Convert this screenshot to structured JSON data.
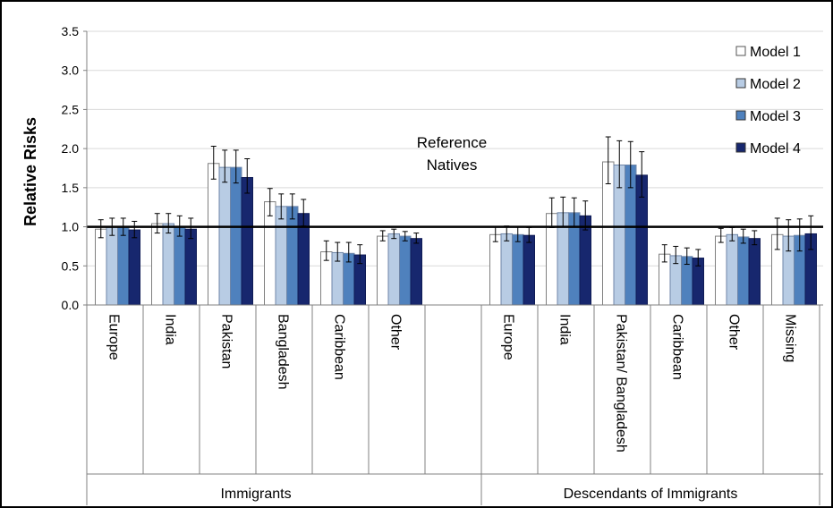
{
  "chart_data": {
    "type": "bar",
    "ylabel": "Relative Risks",
    "ylim": [
      0,
      3.5
    ],
    "yticks": [
      "0.0",
      "0.5",
      "1.0",
      "1.5",
      "2.0",
      "2.5",
      "3.0",
      "3.5"
    ],
    "grid": true,
    "legend_position": "top-right",
    "reference_line": {
      "value": 1.0,
      "label_line1": "Reference",
      "label_line2": "Natives"
    },
    "groups": [
      {
        "label": "Immigrants",
        "categories": [
          "Europe",
          "India",
          "Pakistan",
          "Bangladesh",
          "Caribbean",
          "Other"
        ]
      },
      {
        "label": "Descendants of Immigrants",
        "categories": [
          "Europe",
          "India",
          "Pakistan/ Bangladesh",
          "Caribbean",
          "Other",
          "Missing"
        ]
      }
    ],
    "series": [
      {
        "name": "Model 1",
        "color": "#ffffff",
        "values": [
          0.97,
          1.04,
          1.81,
          1.32,
          0.68,
          0.88,
          null,
          0.9,
          1.17,
          1.83,
          0.65,
          0.88,
          0.9
        ],
        "lower": [
          0.86,
          0.92,
          1.61,
          1.14,
          0.57,
          0.82,
          null,
          0.81,
          0.99,
          1.55,
          0.55,
          0.8,
          0.71
        ],
        "upper": [
          1.09,
          1.17,
          2.03,
          1.49,
          0.82,
          0.95,
          null,
          1.0,
          1.37,
          2.15,
          0.77,
          0.98,
          1.11
        ]
      },
      {
        "name": "Model 2",
        "color": "#b8cce4",
        "values": [
          1.0,
          1.04,
          1.76,
          1.26,
          0.67,
          0.91,
          null,
          0.91,
          1.18,
          1.79,
          0.63,
          0.9,
          0.88
        ],
        "lower": [
          0.89,
          0.92,
          1.57,
          1.1,
          0.56,
          0.85,
          null,
          0.82,
          1.0,
          1.5,
          0.53,
          0.82,
          0.69
        ],
        "upper": [
          1.11,
          1.17,
          1.98,
          1.42,
          0.8,
          0.97,
          null,
          1.01,
          1.38,
          2.1,
          0.75,
          0.99,
          1.09
        ]
      },
      {
        "name": "Model 3",
        "color": "#4f81bd",
        "values": [
          1.0,
          1.0,
          1.76,
          1.26,
          0.66,
          0.88,
          null,
          0.9,
          1.18,
          1.79,
          0.62,
          0.87,
          0.89
        ],
        "lower": [
          0.89,
          0.88,
          1.56,
          1.1,
          0.55,
          0.82,
          null,
          0.81,
          1.0,
          1.5,
          0.52,
          0.79,
          0.69
        ],
        "upper": [
          1.11,
          1.14,
          1.98,
          1.42,
          0.8,
          0.94,
          null,
          1.0,
          1.37,
          2.09,
          0.73,
          0.97,
          1.1
        ]
      },
      {
        "name": "Model 4",
        "color": "#17276e",
        "values": [
          0.96,
          0.97,
          1.63,
          1.17,
          0.64,
          0.85,
          null,
          0.89,
          1.14,
          1.66,
          0.6,
          0.85,
          0.91
        ],
        "lower": [
          0.86,
          0.85,
          1.43,
          1.01,
          0.53,
          0.79,
          null,
          0.8,
          0.96,
          1.38,
          0.5,
          0.77,
          0.71
        ],
        "upper": [
          1.07,
          1.11,
          1.87,
          1.35,
          0.77,
          0.92,
          null,
          0.99,
          1.33,
          1.96,
          0.71,
          0.95,
          1.14
        ]
      }
    ]
  }
}
